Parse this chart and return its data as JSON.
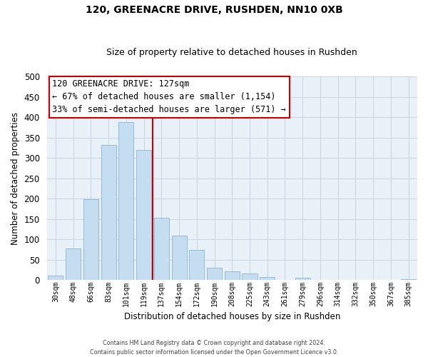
{
  "title": "120, GREENACRE DRIVE, RUSHDEN, NN10 0XB",
  "subtitle": "Size of property relative to detached houses in Rushden",
  "xlabel": "Distribution of detached houses by size in Rushden",
  "ylabel": "Number of detached properties",
  "bar_labels": [
    "30sqm",
    "48sqm",
    "66sqm",
    "83sqm",
    "101sqm",
    "119sqm",
    "137sqm",
    "154sqm",
    "172sqm",
    "190sqm",
    "208sqm",
    "225sqm",
    "243sqm",
    "261sqm",
    "279sqm",
    "296sqm",
    "314sqm",
    "332sqm",
    "350sqm",
    "367sqm",
    "385sqm"
  ],
  "bar_values": [
    10,
    78,
    198,
    332,
    388,
    320,
    152,
    108,
    73,
    30,
    21,
    15,
    7,
    0,
    5,
    0,
    0,
    0,
    0,
    0,
    2
  ],
  "bar_color": "#c5ddf0",
  "bar_edge_color": "#8ab4d4",
  "vline_x": 5.5,
  "vline_color": "#cc0000",
  "ylim": [
    0,
    500
  ],
  "yticks": [
    0,
    50,
    100,
    150,
    200,
    250,
    300,
    350,
    400,
    450,
    500
  ],
  "annotation_title": "120 GREENACRE DRIVE: 127sqm",
  "annotation_line1": "← 67% of detached houses are smaller (1,154)",
  "annotation_line2": "33% of semi-detached houses are larger (571) →",
  "annotation_box_color": "#ffffff",
  "annotation_box_edge": "#cc0000",
  "footer_line1": "Contains HM Land Registry data © Crown copyright and database right 2024.",
  "footer_line2": "Contains public sector information licensed under the Open Government Licence v3.0.",
  "background_color": "#ffffff",
  "plot_bg_color": "#e8f0f8",
  "grid_color": "#c8d4e4"
}
